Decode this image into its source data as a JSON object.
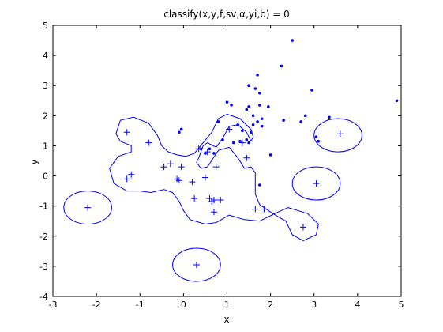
{
  "chart_data": {
    "type": "scatter",
    "title": "classify(x,y,f,sv,α,yi,b) = 0",
    "xlabel": "x",
    "ylabel": "y",
    "xlim": [
      -3,
      5
    ],
    "ylim": [
      -4,
      5
    ],
    "xticks": [
      "-3",
      "-2",
      "-1",
      "0",
      "1",
      "2",
      "3",
      "4",
      "5"
    ],
    "yticks": [
      "-4",
      "-3",
      "-2",
      "-1",
      "0",
      "1",
      "2",
      "3",
      "4",
      "5"
    ],
    "grid": false,
    "colors": {
      "points": "#0000ff",
      "contour": "#0000ff",
      "axes": "#000000"
    },
    "series": [
      {
        "marker": "dot",
        "points": [
          [
            -0.1,
            1.45
          ],
          [
            -0.05,
            1.55
          ],
          [
            0.5,
            0.75
          ],
          [
            0.4,
            0.9
          ],
          [
            0.6,
            0.9
          ],
          [
            0.7,
            0.75
          ],
          [
            0.8,
            1.8
          ],
          [
            1.0,
            2.45
          ],
          [
            1.1,
            2.35
          ],
          [
            0.9,
            1.2
          ],
          [
            1.15,
            1.1
          ],
          [
            1.25,
            1.7
          ],
          [
            1.3,
            1.15
          ],
          [
            1.35,
            1.5
          ],
          [
            1.45,
            1.2
          ],
          [
            1.5,
            1.1
          ],
          [
            1.5,
            2.3
          ],
          [
            1.45,
            2.2
          ],
          [
            1.55,
            1.45
          ],
          [
            1.6,
            2.0
          ],
          [
            1.65,
            2.9
          ],
          [
            1.7,
            3.35
          ],
          [
            1.75,
            2.75
          ],
          [
            1.75,
            2.35
          ],
          [
            1.7,
            1.8
          ],
          [
            1.6,
            1.7
          ],
          [
            1.8,
            1.65
          ],
          [
            1.75,
            -0.3
          ],
          [
            1.5,
            3.0
          ],
          [
            1.95,
            2.3
          ],
          [
            2.0,
            0.7
          ],
          [
            2.25,
            3.65
          ],
          [
            2.3,
            1.85
          ],
          [
            2.5,
            4.5
          ],
          [
            2.7,
            1.8
          ],
          [
            2.8,
            2.0
          ],
          [
            2.95,
            2.85
          ],
          [
            3.05,
            1.3
          ],
          [
            3.1,
            1.15
          ],
          [
            3.35,
            1.95
          ],
          [
            4.9,
            2.5
          ],
          [
            1.8,
            1.9
          ]
        ]
      },
      {
        "marker": "plus",
        "points": [
          [
            -2.2,
            -1.05
          ],
          [
            -1.3,
            -0.1
          ],
          [
            -1.3,
            1.45
          ],
          [
            -1.2,
            0.05
          ],
          [
            -0.8,
            1.1
          ],
          [
            -0.45,
            0.3
          ],
          [
            -0.3,
            0.4
          ],
          [
            -0.15,
            -0.1
          ],
          [
            -0.05,
            0.3
          ],
          [
            -0.1,
            -0.15
          ],
          [
            0.2,
            -0.2
          ],
          [
            0.25,
            -0.75
          ],
          [
            0.35,
            0.9
          ],
          [
            0.5,
            -0.05
          ],
          [
            0.55,
            0.8
          ],
          [
            0.65,
            -0.85
          ],
          [
            0.7,
            -0.8
          ],
          [
            0.7,
            -1.2
          ],
          [
            0.75,
            0.3
          ],
          [
            0.85,
            -0.8
          ],
          [
            1.05,
            1.55
          ],
          [
            1.35,
            1.1
          ],
          [
            1.45,
            0.6
          ],
          [
            1.65,
            -1.1
          ],
          [
            1.85,
            -1.1
          ],
          [
            2.75,
            -1.7
          ],
          [
            3.05,
            -0.25
          ],
          [
            3.6,
            1.4
          ],
          [
            0.3,
            -2.95
          ],
          [
            0.6,
            -0.75
          ]
        ]
      }
    ],
    "contours": [
      {
        "shape": "ellipse",
        "center": [
          -2.2,
          -1.05
        ],
        "radii": [
          0.55,
          0.55
        ]
      },
      {
        "shape": "ellipse",
        "center": [
          3.05,
          -0.25
        ],
        "radii": [
          0.55,
          0.55
        ]
      },
      {
        "shape": "ellipse",
        "center": [
          3.55,
          1.35
        ],
        "radii": [
          0.55,
          0.55
        ]
      },
      {
        "shape": "ellipse",
        "center": [
          0.3,
          -2.95
        ],
        "radii": [
          0.55,
          0.55
        ]
      },
      {
        "shape": "polygon",
        "points": [
          [
            -1.55,
            1.4
          ],
          [
            -1.45,
            1.85
          ],
          [
            -1.15,
            1.95
          ],
          [
            -0.8,
            1.75
          ],
          [
            -0.6,
            1.35
          ],
          [
            -0.5,
            1.0
          ],
          [
            -0.35,
            0.8
          ],
          [
            -0.15,
            0.7
          ],
          [
            0.05,
            0.65
          ],
          [
            0.25,
            0.75
          ],
          [
            0.45,
            1.1
          ],
          [
            0.65,
            1.45
          ],
          [
            0.8,
            1.9
          ],
          [
            1.0,
            2.05
          ],
          [
            1.3,
            1.9
          ],
          [
            1.55,
            1.55
          ],
          [
            1.6,
            1.3
          ],
          [
            1.55,
            1.15
          ],
          [
            1.45,
            1.45
          ],
          [
            1.25,
            1.7
          ],
          [
            1.05,
            1.65
          ],
          [
            0.9,
            1.25
          ],
          [
            0.75,
            0.95
          ],
          [
            0.55,
            1.1
          ],
          [
            0.45,
            1.0
          ],
          [
            0.35,
            0.6
          ],
          [
            0.3,
            0.45
          ],
          [
            0.4,
            0.25
          ],
          [
            0.55,
            0.3
          ],
          [
            0.8,
            0.85
          ],
          [
            1.05,
            0.95
          ],
          [
            1.25,
            0.6
          ],
          [
            1.4,
            0.25
          ],
          [
            1.55,
            0.3
          ],
          [
            1.65,
            0.1
          ],
          [
            1.65,
            -0.6
          ],
          [
            1.75,
            -0.95
          ],
          [
            2.05,
            -1.25
          ],
          [
            2.35,
            -1.5
          ],
          [
            2.5,
            -1.95
          ],
          [
            2.75,
            -2.15
          ],
          [
            3.05,
            -1.95
          ],
          [
            3.1,
            -1.6
          ],
          [
            2.85,
            -1.25
          ],
          [
            2.4,
            -1.05
          ],
          [
            2.1,
            -1.25
          ],
          [
            1.75,
            -1.5
          ],
          [
            1.4,
            -1.45
          ],
          [
            1.05,
            -1.3
          ],
          [
            0.75,
            -1.55
          ],
          [
            0.5,
            -1.6
          ],
          [
            0.15,
            -1.45
          ],
          [
            0.0,
            -1.15
          ],
          [
            -0.1,
            -0.85
          ],
          [
            -0.25,
            -0.55
          ],
          [
            -0.45,
            -0.45
          ],
          [
            -0.75,
            -0.55
          ],
          [
            -1.0,
            -0.5
          ],
          [
            -1.3,
            -0.5
          ],
          [
            -1.6,
            -0.25
          ],
          [
            -1.7,
            0.25
          ],
          [
            -1.5,
            0.65
          ],
          [
            -1.2,
            0.8
          ],
          [
            -1.2,
            1.0
          ],
          [
            -1.45,
            1.15
          ]
        ]
      }
    ]
  }
}
